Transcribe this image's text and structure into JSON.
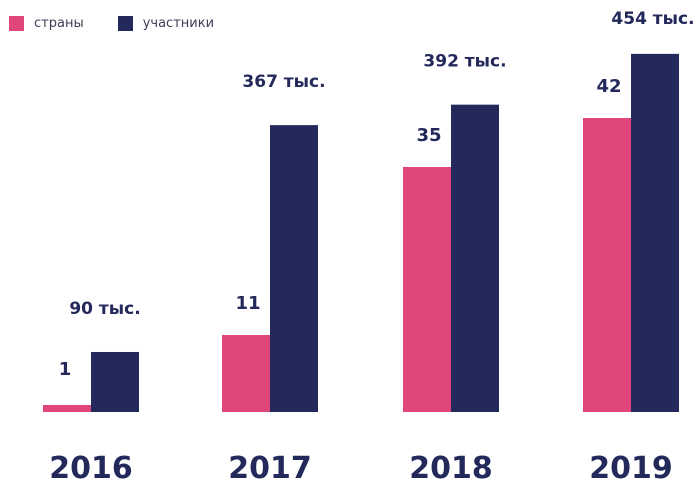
{
  "colors": {
    "countries": "#e0457b",
    "participants": "#23295a",
    "text": "#23295a"
  },
  "legend": {
    "countries_label": "страны",
    "participants_label": "участники"
  },
  "chart_data": {
    "type": "bar",
    "title": "",
    "xlabel": "",
    "ylabel": "",
    "categories": [
      "2016",
      "2017",
      "2018",
      "2019"
    ],
    "series": [
      {
        "name": "страны",
        "values": [
          1,
          11,
          35,
          42
        ],
        "labels": [
          "1",
          "11",
          "35",
          "42"
        ]
      },
      {
        "name": "участники",
        "values": [
          90,
          367,
          392,
          454
        ],
        "labels": [
          "90 тыс.",
          "367 тыс.",
          "392 тыс.",
          "454 тыс."
        ]
      }
    ],
    "grid": false,
    "legend_position": "top-left"
  }
}
